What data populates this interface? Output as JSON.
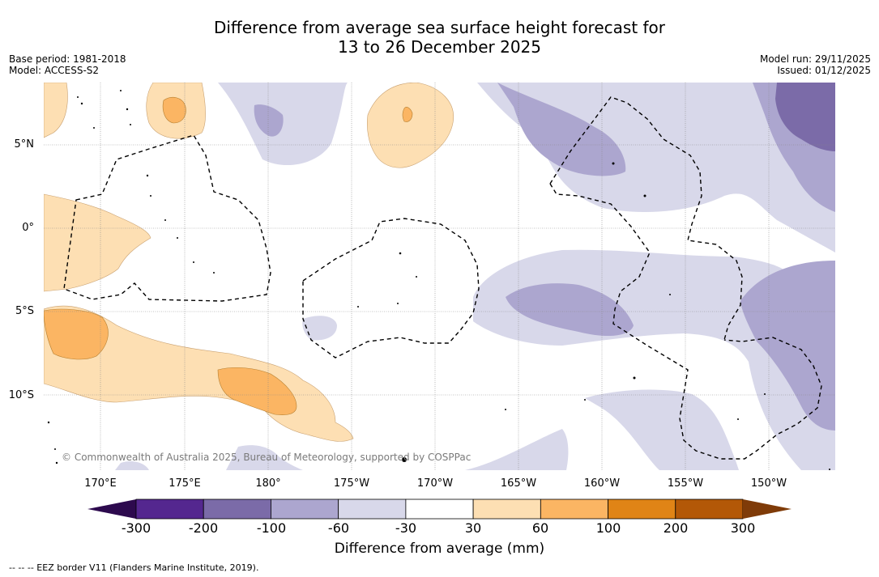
{
  "title": {
    "line1": "Difference from average sea surface height forecast for",
    "line2": "13 to 26 December 2025"
  },
  "meta_left": {
    "base_period": "Base period: 1981-2018",
    "model": "Model: ACCESS-S2"
  },
  "meta_right": {
    "model_run": "Model run: 29/11/2025",
    "issued": "Issued: 01/12/2025"
  },
  "map": {
    "lat_labels": [
      "5°N",
      "0°",
      "5°S",
      "10°S"
    ],
    "lon_labels": [
      "170°E",
      "175°E",
      "180°",
      "175°W",
      "170°W",
      "165°W",
      "160°W",
      "155°W",
      "150°W"
    ],
    "copyright": "© Commonwealth of Australia 2025, Bureau of Meteorology, supported by COSPPac"
  },
  "colorbar": {
    "ticks": [
      "-300",
      "-200",
      "-100",
      "-60",
      "-30",
      "30",
      "60",
      "100",
      "200",
      "300"
    ],
    "colors": {
      "under": "#2d0a4e",
      "bins": [
        "#54278f",
        "#7b6ba8",
        "#aca6cf",
        "#d8d8ea",
        "#ffffff",
        "#fddfb3",
        "#fbb563",
        "#e08416",
        "#b35807"
      ],
      "over": "#7f3b08"
    },
    "title": "Difference from average (mm)"
  },
  "footer": "--  --  -- EEZ border V11 (Flanders Marine Institute, 2019)."
}
